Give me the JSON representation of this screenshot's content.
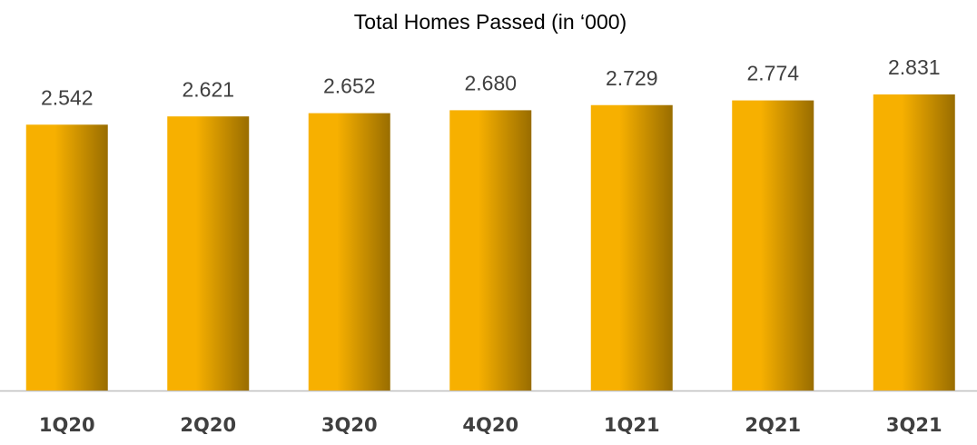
{
  "chart_data": {
    "type": "bar",
    "title": "Total Homes Passed (in ‘000)",
    "categories": [
      "1Q20",
      "2Q20",
      "3Q20",
      "4Q20",
      "1Q21",
      "2Q21",
      "3Q21"
    ],
    "values": [
      2542,
      2621,
      2652,
      2680,
      2729,
      2774,
      2831
    ],
    "value_labels": [
      "2.542",
      "2.621",
      "2.652",
      "2.680",
      "2.729",
      "2.774",
      "2.831"
    ],
    "color": "#f7b000"
  }
}
